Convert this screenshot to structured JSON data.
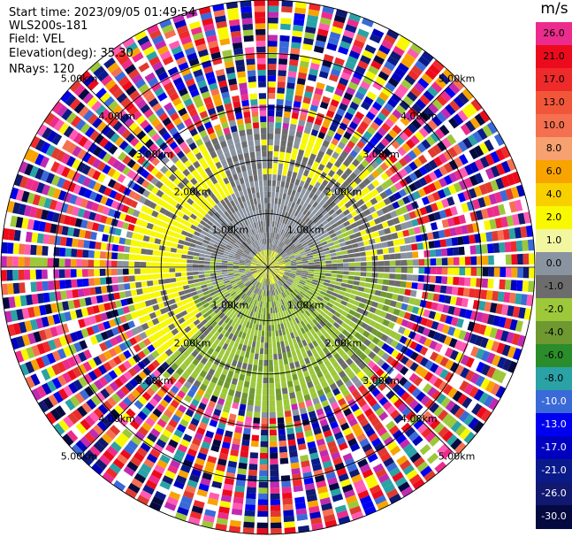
{
  "header": {
    "start_time": "Start time: 2023/09/05 01:49:54",
    "instrument": "WLS200s-181",
    "field": "Field: VEL",
    "elevation": "Elevation(deg): 35.30",
    "nrays": "NRays: 120"
  },
  "colorbar": {
    "unit": "m/s",
    "levels": [
      {
        "label": "26.0",
        "color": "#ec2c8c"
      },
      {
        "label": "21.0",
        "color": "#ec0b1c"
      },
      {
        "label": "17.0",
        "color": "#ee2a2a"
      },
      {
        "label": "13.0",
        "color": "#f2563a"
      },
      {
        "label": "10.0",
        "color": "#f57050"
      },
      {
        "label": "8.0",
        "color": "#f7a070"
      },
      {
        "label": "6.0",
        "color": "#f8a400"
      },
      {
        "label": "4.0",
        "color": "#f8d000"
      },
      {
        "label": "2.0",
        "color": "#f8f800"
      },
      {
        "label": "1.0",
        "color": "#f2f6a0"
      },
      {
        "label": "0.0",
        "color": "#8a93a0"
      },
      {
        "label": "-1.0",
        "color": "#6c6c6c"
      },
      {
        "label": "-2.0",
        "color": "#9dc83a"
      },
      {
        "label": "-4.0",
        "color": "#6e9830"
      },
      {
        "label": "-6.0",
        "color": "#2a8c2a"
      },
      {
        "label": "-8.0",
        "color": "#2aa2a6"
      },
      {
        "label": "-10.0",
        "color": "#3a6ad8"
      },
      {
        "label": "-13.0",
        "color": "#0000f0"
      },
      {
        "label": "-17.0",
        "color": "#0000c0"
      },
      {
        "label": "-21.0",
        "color": "#0a1a8a"
      },
      {
        "label": "-26.0",
        "color": "#101870"
      },
      {
        "label": "-30.0",
        "color": "#040a40"
      }
    ]
  },
  "chart_data": {
    "type": "heatmap",
    "subtype": "polar-ppi",
    "field": "VEL",
    "units": "m/s",
    "rays": 120,
    "range_rings": [
      {
        "range_km": 1.0,
        "label": "1.00km"
      },
      {
        "range_km": 2.0,
        "label": "2.00km"
      },
      {
        "range_km": 3.0,
        "label": "3.00km"
      },
      {
        "range_km": 4.0,
        "label": "4.00km"
      },
      {
        "range_km": 5.0,
        "label": "5.00km"
      }
    ],
    "max_range_km": 5.0,
    "scale_min": -30.0,
    "scale_max": 26.0,
    "clear_air_range_km": 2.6,
    "pattern": "near-zero velocities within ~2.5 km: yellow/positive toward west and north-east, green/negative toward south; noisy multicolor returns beyond"
  }
}
